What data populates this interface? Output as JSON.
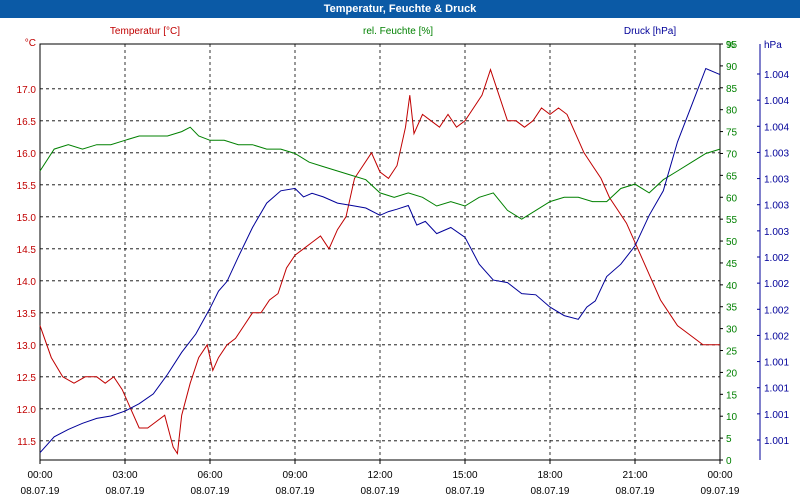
{
  "title": "Temperatur, Feuchte & Druck",
  "chart_data": {
    "type": "line",
    "grid": true,
    "x_ticks": [
      {
        "time": "00:00",
        "date": "08.07.19"
      },
      {
        "time": "03:00",
        "date": "08.07.19"
      },
      {
        "time": "06:00",
        "date": "08.07.19"
      },
      {
        "time": "09:00",
        "date": "08.07.19"
      },
      {
        "time": "12:00",
        "date": "08.07.19"
      },
      {
        "time": "15:00",
        "date": "08.07.19"
      },
      {
        "time": "18:00",
        "date": "08.07.19"
      },
      {
        "time": "21:00",
        "date": "08.07.19"
      },
      {
        "time": "00:00",
        "date": "09.07.19"
      }
    ],
    "xlim_hours": [
      0,
      24
    ],
    "axes": {
      "temperature": {
        "label": "Temperatur [°C]",
        "unit": "°C",
        "color": "#c00000",
        "ylim": [
          11.2,
          17.7
        ],
        "ticks": [
          "11.5",
          "12.0",
          "12.5",
          "13.0",
          "13.5",
          "14.0",
          "14.5",
          "15.0",
          "15.5",
          "16.0",
          "16.5",
          "17.0"
        ]
      },
      "humidity": {
        "label": "rel. Feuchte [%]",
        "unit": "%",
        "color": "#008000",
        "ylim": [
          0,
          95
        ],
        "ticks": [
          "0",
          "5",
          "10",
          "15",
          "20",
          "25",
          "30",
          "35",
          "40",
          "45",
          "50",
          "55",
          "60",
          "65",
          "70",
          "75",
          "80",
          "85",
          "90",
          "95"
        ]
      },
      "pressure": {
        "label": "Druck [hPa]",
        "unit": "hPa",
        "color": "#000099",
        "ylim": [
          1000.9,
          1004.3
        ],
        "ticks": [
          "1.001",
          "1.001",
          "1.001",
          "1.001",
          "1.002",
          "1.002",
          "1.002",
          "1.002",
          "1.003",
          "1.003",
          "1.003",
          "1.003",
          "1.004",
          "1.004",
          "1.004"
        ]
      }
    },
    "series": [
      {
        "name": "Temperatur [°C]",
        "axis": "temperature",
        "color": "#c00000",
        "x": [
          0,
          0.4,
          0.8,
          1.2,
          1.6,
          2,
          2.3,
          2.6,
          2.9,
          3.2,
          3.5,
          3.8,
          4.1,
          4.4,
          4.7,
          4.85,
          5,
          5.3,
          5.6,
          5.9,
          6.1,
          6.3,
          6.6,
          6.9,
          7.2,
          7.5,
          7.8,
          8.1,
          8.4,
          8.7,
          9,
          9.3,
          9.6,
          9.9,
          10.2,
          10.5,
          10.8,
          11.1,
          11.4,
          11.7,
          12,
          12.3,
          12.6,
          12.9,
          13.05,
          13.2,
          13.5,
          13.8,
          14.1,
          14.4,
          14.7,
          15,
          15.3,
          15.6,
          15.9,
          16.2,
          16.5,
          16.8,
          17.1,
          17.4,
          17.7,
          18,
          18.3,
          18.6,
          18.9,
          19.2,
          19.5,
          19.8,
          20.1,
          20.4,
          20.7,
          21,
          21.3,
          21.6,
          21.9,
          22.2,
          22.5,
          22.8,
          23.1,
          23.4,
          23.7,
          24
        ],
        "values": [
          13.3,
          12.8,
          12.5,
          12.4,
          12.5,
          12.5,
          12.4,
          12.5,
          12.3,
          12.0,
          11.7,
          11.7,
          11.8,
          11.9,
          11.4,
          11.3,
          11.9,
          12.4,
          12.8,
          13.0,
          12.6,
          12.8,
          13.0,
          13.1,
          13.3,
          13.5,
          13.5,
          13.7,
          13.8,
          14.2,
          14.4,
          14.5,
          14.6,
          14.7,
          14.5,
          14.8,
          15.0,
          15.6,
          15.8,
          16.0,
          15.7,
          15.6,
          15.8,
          16.4,
          16.9,
          16.3,
          16.6,
          16.5,
          16.4,
          16.6,
          16.4,
          16.5,
          16.7,
          16.9,
          17.3,
          16.9,
          16.5,
          16.5,
          16.4,
          16.5,
          16.7,
          16.6,
          16.7,
          16.6,
          16.3,
          16.0,
          15.8,
          15.6,
          15.3,
          15.1,
          14.9,
          14.6,
          14.3,
          14.0,
          13.7,
          13.5,
          13.3,
          13.2,
          13.1,
          13.0,
          13.0,
          13.0
        ]
      },
      {
        "name": "rel. Feuchte [%]",
        "axis": "humidity",
        "color": "#008000",
        "x": [
          0,
          0.5,
          1,
          1.5,
          2,
          2.5,
          3,
          3.5,
          4,
          4.5,
          5,
          5.3,
          5.6,
          6,
          6.5,
          7,
          7.5,
          8,
          8.5,
          9,
          9.5,
          10,
          10.5,
          11,
          11.5,
          12,
          12.5,
          13,
          13.5,
          14,
          14.5,
          15,
          15.5,
          16,
          16.5,
          17,
          17.5,
          18,
          18.5,
          19,
          19.5,
          20,
          20.5,
          21,
          21.5,
          22,
          22.5,
          23,
          23.5,
          24
        ],
        "values": [
          66,
          71,
          72,
          71,
          72,
          72,
          73,
          74,
          74,
          74,
          75,
          76,
          74,
          73,
          73,
          72,
          72,
          71,
          71,
          70,
          68,
          67,
          66,
          65,
          64,
          61,
          60,
          61,
          60,
          58,
          59,
          58,
          60,
          61,
          57,
          55,
          57,
          59,
          60,
          60,
          59,
          59,
          62,
          63,
          61,
          64,
          66,
          68,
          70,
          71
        ]
      },
      {
        "name": "Druck [hPa]",
        "axis": "pressure",
        "color": "#000099",
        "x": [
          0,
          0.5,
          1,
          1.5,
          2,
          2.5,
          3,
          3.5,
          4,
          4.5,
          5,
          5.5,
          6,
          6.3,
          6.6,
          7,
          7.5,
          8,
          8.5,
          9,
          9.3,
          9.6,
          10,
          10.5,
          11,
          11.5,
          12,
          12.3,
          12.6,
          13,
          13.3,
          13.6,
          14,
          14.5,
          15,
          15.5,
          16,
          16.5,
          17,
          17.5,
          18,
          18.5,
          19,
          19.3,
          19.6,
          20,
          20.5,
          21,
          21.5,
          22,
          22.5,
          23,
          23.5,
          24
        ],
        "values": [
          1000.96,
          1001.09,
          1001.15,
          1001.2,
          1001.24,
          1001.26,
          1001.3,
          1001.36,
          1001.44,
          1001.6,
          1001.78,
          1001.93,
          1002.14,
          1002.28,
          1002.36,
          1002.56,
          1002.8,
          1003.0,
          1003.1,
          1003.12,
          1003.05,
          1003.08,
          1003.05,
          1003.0,
          1002.98,
          1002.96,
          1002.9,
          1002.93,
          1002.95,
          1002.98,
          1002.82,
          1002.85,
          1002.75,
          1002.8,
          1002.72,
          1002.5,
          1002.37,
          1002.35,
          1002.26,
          1002.25,
          1002.15,
          1002.08,
          1002.05,
          1002.15,
          1002.2,
          1002.4,
          1002.5,
          1002.65,
          1002.9,
          1003.1,
          1003.5,
          1003.8,
          1004.1,
          1004.05
        ]
      }
    ]
  }
}
